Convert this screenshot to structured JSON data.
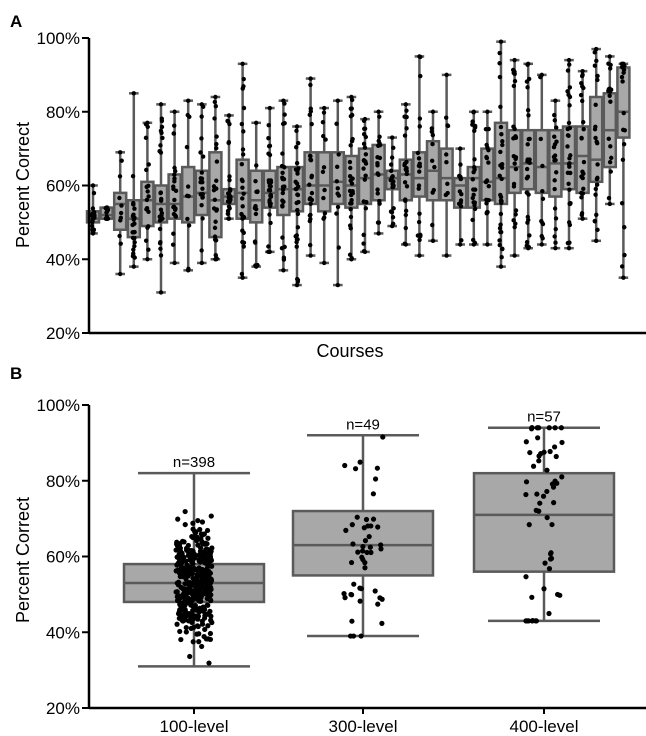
{
  "colors": {
    "box_fill": "#a8a8a8",
    "box_edge": "#5a5a5a",
    "point": "#000000",
    "axis": "#000000"
  },
  "panel_a": {
    "label": "A",
    "ylabel": "Percent Correct",
    "xlabel": "Courses"
  },
  "panel_b": {
    "label": "B",
    "ylabel": "Percent Correct",
    "xlabel": ""
  },
  "chart_data": [
    {
      "type": "box",
      "panel": "A",
      "title": "",
      "xlabel": "Courses",
      "ylabel": "Percent Correct",
      "ylim": [
        20,
        100
      ],
      "yticks": [
        20,
        40,
        60,
        80,
        100
      ],
      "ytick_labels": [
        "20%",
        "40%",
        "60%",
        "80%",
        "100%"
      ],
      "grid": false,
      "boxes": [
        {
          "q1": 50,
          "median": 51,
          "q3": 53,
          "low": 47,
          "high": 60
        },
        {
          "q1": 51,
          "median": 52,
          "q3": 54,
          "low": 51,
          "high": 54
        },
        {
          "q1": 48,
          "median": 55,
          "q3": 58,
          "low": 36,
          "high": 69
        },
        {
          "q1": 46,
          "median": 51,
          "q3": 56,
          "low": 38,
          "high": 85
        },
        {
          "q1": 49,
          "median": 56,
          "q3": 61,
          "low": 40,
          "high": 77
        },
        {
          "q1": 50,
          "median": 55,
          "q3": 60,
          "low": 31,
          "high": 82
        },
        {
          "q1": 51,
          "median": 55,
          "q3": 63,
          "low": 39,
          "high": 80
        },
        {
          "q1": 50,
          "median": 57,
          "q3": 65,
          "low": 37,
          "high": 83
        },
        {
          "q1": 52,
          "median": 58,
          "q3": 64,
          "low": 39,
          "high": 82
        },
        {
          "q1": 46,
          "median": 56,
          "q3": 69,
          "low": 40,
          "high": 84
        },
        {
          "q1": 55,
          "median": 57,
          "q3": 59,
          "low": 51,
          "high": 79
        },
        {
          "q1": 51,
          "median": 58,
          "q3": 67,
          "low": 35,
          "high": 93
        },
        {
          "q1": 50,
          "median": 56,
          "q3": 64,
          "low": 38,
          "high": 77
        },
        {
          "q1": 54,
          "median": 58,
          "q3": 64,
          "low": 42,
          "high": 81
        },
        {
          "q1": 52,
          "median": 59,
          "q3": 65,
          "low": 37,
          "high": 83
        },
        {
          "q1": 53,
          "median": 59,
          "q3": 65,
          "low": 33,
          "high": 76
        },
        {
          "q1": 55,
          "median": 60,
          "q3": 69,
          "low": 41,
          "high": 89
        },
        {
          "q1": 53,
          "median": 60,
          "q3": 69,
          "low": 39,
          "high": 81
        },
        {
          "q1": 55,
          "median": 61,
          "q3": 69,
          "low": 33,
          "high": 83
        },
        {
          "q1": 54,
          "median": 60,
          "q3": 68,
          "low": 40,
          "high": 84
        },
        {
          "q1": 55,
          "median": 62,
          "q3": 70,
          "low": 42,
          "high": 78
        },
        {
          "q1": 56,
          "median": 63,
          "q3": 71,
          "low": 47,
          "high": 80
        },
        {
          "q1": 59,
          "median": 62,
          "q3": 64,
          "low": 49,
          "high": 73
        },
        {
          "q1": 56,
          "median": 63,
          "q3": 67,
          "low": 44,
          "high": 82
        },
        {
          "q1": 57,
          "median": 62,
          "q3": 69,
          "low": 41,
          "high": 95
        },
        {
          "q1": 56,
          "median": 64,
          "q3": 72,
          "low": 45,
          "high": 80
        },
        {
          "q1": 56,
          "median": 62,
          "q3": 70,
          "low": 41,
          "high": 90
        },
        {
          "q1": 54,
          "median": 60,
          "q3": 62,
          "low": 44,
          "high": 70
        },
        {
          "q1": 54,
          "median": 62,
          "q3": 65,
          "low": 44,
          "high": 80
        },
        {
          "q1": 56,
          "median": 61,
          "q3": 70,
          "low": 44,
          "high": 80
        },
        {
          "q1": 55,
          "median": 62,
          "q3": 77,
          "low": 38,
          "high": 99
        },
        {
          "q1": 58,
          "median": 65,
          "q3": 75,
          "low": 41,
          "high": 94
        },
        {
          "q1": 59,
          "median": 66,
          "q3": 75,
          "low": 43,
          "high": 93
        },
        {
          "q1": 58,
          "median": 65,
          "q3": 75,
          "low": 44,
          "high": 90
        },
        {
          "q1": 57,
          "median": 66,
          "q3": 75,
          "low": 43,
          "high": 83
        },
        {
          "q1": 59,
          "median": 66,
          "q3": 76,
          "low": 43,
          "high": 94
        },
        {
          "q1": 58,
          "median": 68,
          "q3": 76,
          "low": 51,
          "high": 91
        },
        {
          "q1": 61,
          "median": 67,
          "q3": 84,
          "low": 45,
          "high": 97
        },
        {
          "q1": 65,
          "median": 75,
          "q3": 85,
          "low": 55,
          "high": 95
        },
        {
          "q1": 73,
          "median": 80,
          "q3": 92,
          "low": 35,
          "high": 93
        }
      ]
    },
    {
      "type": "box",
      "panel": "B",
      "title": "",
      "xlabel": "",
      "ylabel": "Percent Correct",
      "ylim": [
        20,
        100
      ],
      "yticks": [
        20,
        40,
        60,
        80,
        100
      ],
      "ytick_labels": [
        "20%",
        "40%",
        "60%",
        "80%",
        "100%"
      ],
      "grid": false,
      "categories": [
        "100-level",
        "300-level",
        "400-level"
      ],
      "series": [
        {
          "category": "100-level",
          "annotation": "n=398",
          "n": 398,
          "low": 31,
          "q1": 48,
          "median": 53,
          "q3": 58,
          "high": 82
        },
        {
          "category": "300-level",
          "annotation": "n=49",
          "n": 49,
          "low": 39,
          "q1": 55,
          "median": 63,
          "q3": 72,
          "high": 92
        },
        {
          "category": "400-level",
          "annotation": "n=57",
          "n": 57,
          "low": 43,
          "q1": 56,
          "median": 71,
          "q3": 82,
          "high": 94
        }
      ]
    }
  ]
}
